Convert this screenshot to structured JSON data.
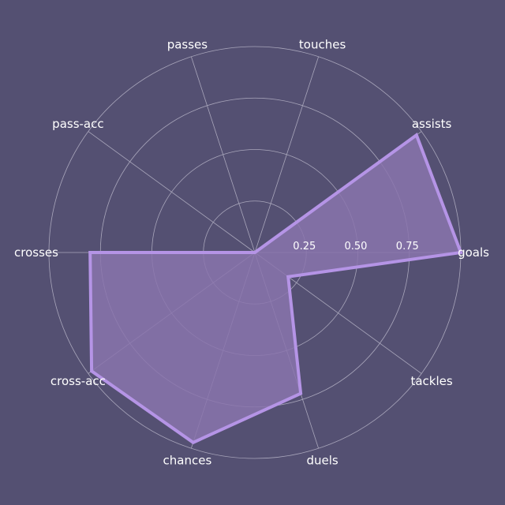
{
  "chart_data": {
    "type": "radar",
    "title": "",
    "categories": [
      "goals",
      "assists",
      "touches",
      "passes",
      "pass-acc",
      "crosses",
      "cross-acc",
      "chances",
      "duels",
      "tackles"
    ],
    "series": [
      {
        "values": [
          1.0,
          0.97,
          0.0,
          0.0,
          0.0,
          0.8,
          0.98,
          0.97,
          0.72,
          0.2
        ]
      }
    ],
    "rlim": [
      0,
      1
    ],
    "r_ticks": [
      0.25,
      0.5,
      0.75
    ],
    "r_tick_labels": [
      "0.25",
      "0.50",
      "0.75"
    ],
    "grid": true,
    "colors": {
      "background": "#545072",
      "grid": "#a9a6bb",
      "fill": "#8a74ad",
      "line": "#b594e6",
      "text": "#ffffff"
    }
  }
}
